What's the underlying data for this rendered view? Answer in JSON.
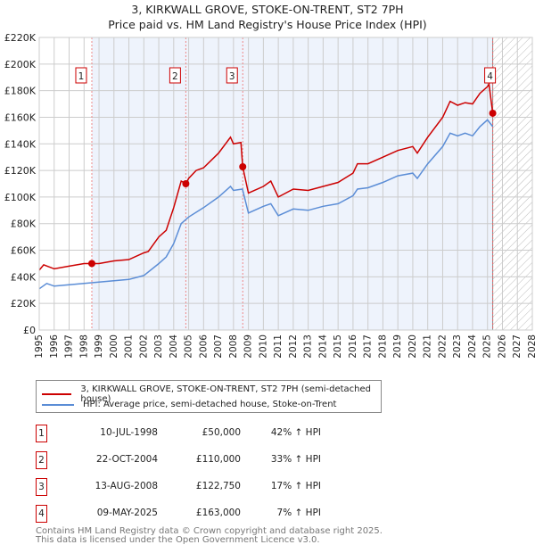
{
  "chart_data": {
    "type": "line",
    "title": "3, KIRKWALL GROVE, STOKE-ON-TRENT, ST2 7PH",
    "subtitle": "Price paid vs. HM Land Registry's House Price Index (HPI)",
    "xlim": [
      1995,
      2028
    ],
    "ylim": [
      0,
      220000
    ],
    "y_ticks": [
      0,
      20000,
      40000,
      60000,
      80000,
      100000,
      120000,
      140000,
      160000,
      180000,
      200000,
      220000
    ],
    "y_tick_labels": [
      "£0",
      "£20K",
      "£40K",
      "£60K",
      "£80K",
      "£100K",
      "£120K",
      "£140K",
      "£160K",
      "£180K",
      "£200K",
      "£220K"
    ],
    "x_ticks": [
      1995,
      1996,
      1997,
      1998,
      1999,
      2000,
      2001,
      2002,
      2003,
      2004,
      2005,
      2006,
      2007,
      2008,
      2009,
      2010,
      2011,
      2012,
      2013,
      2014,
      2015,
      2016,
      2017,
      2018,
      2019,
      2020,
      2021,
      2022,
      2023,
      2024,
      2025,
      2026,
      2027,
      2028
    ],
    "grid": true,
    "series": [
      {
        "name": "3, KIRKWALL GROVE, STOKE-ON-TRENT, ST2 7PH (semi-detached house)",
        "color": "#cc0000",
        "x": [
          1995,
          1995.3,
          1996,
          1997,
          1998,
          1998.52,
          1999,
          2000,
          2001,
          2002,
          2002.3,
          2003,
          2003.5,
          2004,
          2004.5,
          2004.81,
          2005,
          2005.5,
          2006,
          2007,
          2007.8,
          2008,
          2008.5,
          2008.62,
          2009,
          2010,
          2010.5,
          2011,
          2012,
          2013,
          2014,
          2015,
          2016,
          2016.3,
          2017,
          2018,
          2019,
          2020,
          2020.3,
          2021,
          2022,
          2022.5,
          2023,
          2023.5,
          2024,
          2024.5,
          2025,
          2025.1,
          2025.35
        ],
        "y": [
          45000,
          49000,
          46000,
          48000,
          50000,
          50000,
          50000,
          52000,
          53000,
          58000,
          59000,
          70000,
          75000,
          92000,
          112000,
          110000,
          114000,
          120000,
          122000,
          133000,
          145000,
          140000,
          141000,
          122750,
          103000,
          108000,
          112000,
          100000,
          106000,
          105000,
          108000,
          111000,
          118000,
          125000,
          125000,
          130000,
          135000,
          138000,
          133000,
          145000,
          160000,
          172000,
          169000,
          171000,
          170000,
          178000,
          183000,
          185000,
          163000
        ]
      },
      {
        "name": "HPI: Average price, semi-detached house, Stoke-on-Trent",
        "color": "#5b8dd6",
        "x": [
          1995,
          1995.5,
          1996,
          1997,
          1998,
          1999,
          2000,
          2001,
          2002,
          2003,
          2003.5,
          2004,
          2004.5,
          2005,
          2006,
          2007,
          2007.8,
          2008,
          2008.6,
          2009,
          2010,
          2010.5,
          2011,
          2012,
          2013,
          2014,
          2015,
          2016,
          2016.3,
          2017,
          2018,
          2019,
          2020,
          2020.3,
          2021,
          2022,
          2022.5,
          2023,
          2023.5,
          2024,
          2024.5,
          2025,
          2025.35
        ],
        "y": [
          31000,
          35000,
          33000,
          34000,
          35000,
          36000,
          37000,
          38000,
          41000,
          50000,
          55000,
          65000,
          80000,
          85000,
          92000,
          100000,
          108000,
          105000,
          106000,
          88000,
          93000,
          95000,
          86000,
          91000,
          90000,
          93000,
          95000,
          101000,
          106000,
          107000,
          111000,
          116000,
          118000,
          114000,
          125000,
          138000,
          148000,
          146000,
          148000,
          146000,
          153000,
          158000,
          153000
        ]
      }
    ],
    "sales": [
      {
        "label": "1",
        "x": 1998.52,
        "y": 50000,
        "date": "10-JUL-1998",
        "price": "£50,000",
        "hpi": "42% ↑ HPI"
      },
      {
        "label": "2",
        "x": 2004.81,
        "y": 110000,
        "date": "22-OCT-2004",
        "price": "£110,000",
        "hpi": "33% ↑ HPI"
      },
      {
        "label": "3",
        "x": 2008.62,
        "y": 122750,
        "date": "13-AUG-2008",
        "price": "£122,750",
        "hpi": "17% ↑ HPI"
      },
      {
        "label": "4",
        "x": 2025.35,
        "y": 163000,
        "date": "09-MAY-2025",
        "price": "£163,000",
        "hpi": "7% ↑ HPI"
      }
    ],
    "legend_position": "below"
  },
  "footer": {
    "line1": "Contains HM Land Registry data © Crown copyright and database right 2025.",
    "line2": "This data is licensed under the Open Government Licence v3.0."
  }
}
